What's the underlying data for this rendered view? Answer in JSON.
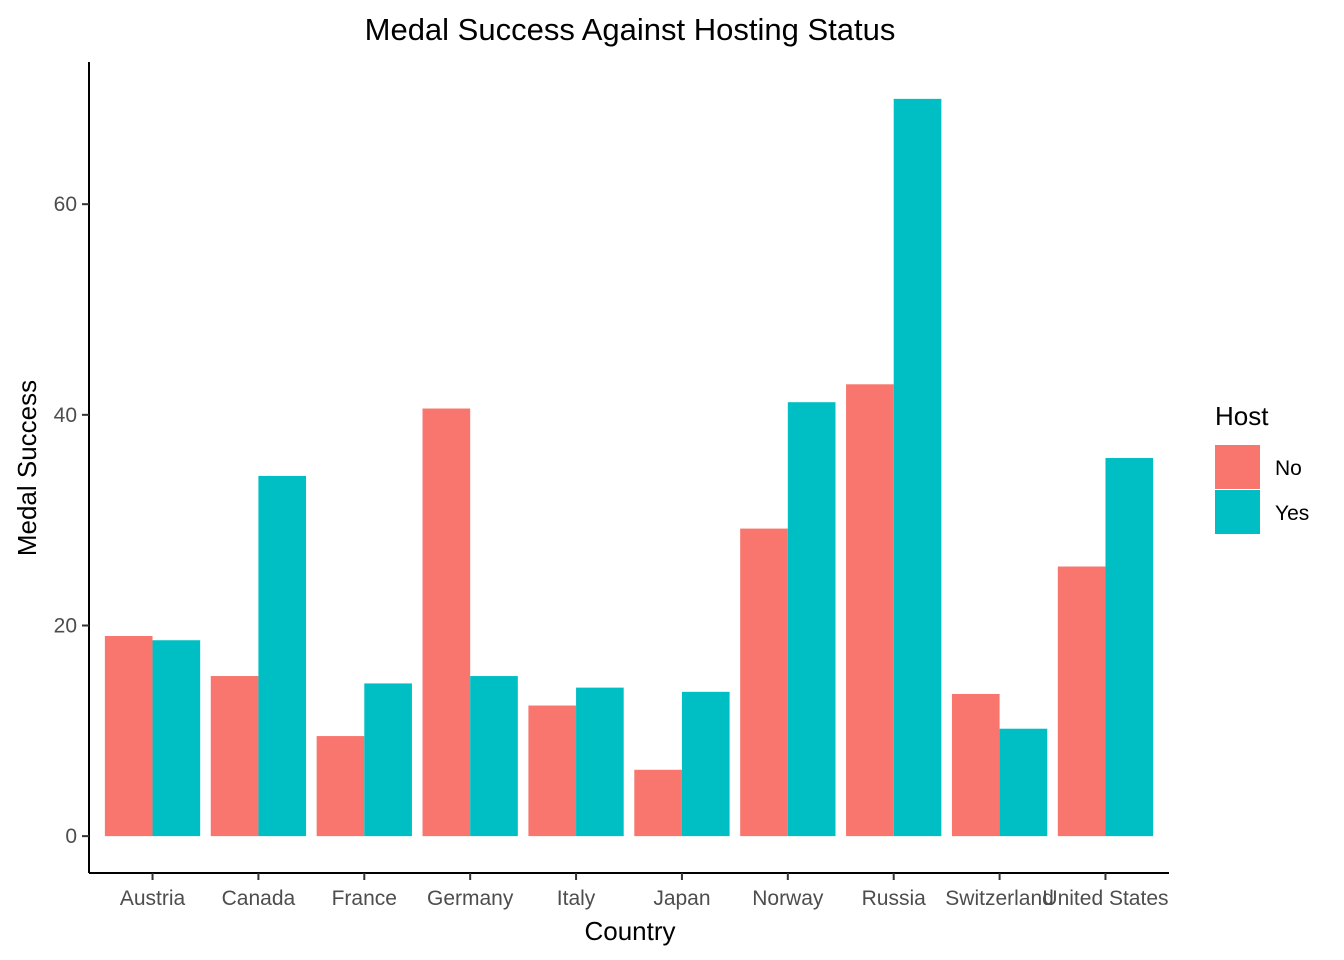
{
  "chart_data": {
    "type": "bar",
    "title": "Medal Success Against Hosting Status",
    "xlabel": "Country",
    "ylabel": "Medal Success",
    "categories": [
      "Austria",
      "Canada",
      "France",
      "Germany",
      "Italy",
      "Japan",
      "Norway",
      "Russia",
      "Switzerland",
      "United States"
    ],
    "series": [
      {
        "name": "No",
        "color": "#F8766D",
        "values": [
          19.0,
          15.2,
          9.5,
          40.6,
          12.4,
          6.3,
          29.2,
          42.9,
          13.5,
          25.6
        ]
      },
      {
        "name": "Yes",
        "color": "#00BFC4",
        "values": [
          18.6,
          34.2,
          14.5,
          15.2,
          14.1,
          13.7,
          41.2,
          70.0,
          10.2,
          35.9
        ]
      }
    ],
    "ylim": [
      -3.5,
      73.5
    ],
    "yticks": [
      0,
      20,
      40,
      60
    ],
    "grid": false,
    "legend": {
      "title": "Host",
      "position": "right"
    }
  }
}
